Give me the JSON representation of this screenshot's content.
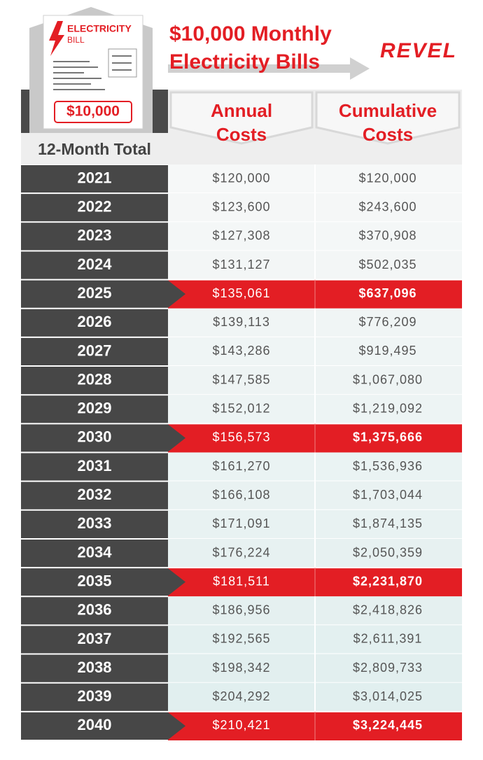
{
  "header": {
    "bill_title": "ELECTRICITY",
    "bill_sub": "BILL",
    "bill_amount": "$10,000",
    "title_lines": [
      "$10,000 Monthly",
      "Electricity Bills"
    ],
    "logo": "REVEL"
  },
  "table": {
    "row_header": "12-Month Total",
    "columns": [
      [
        "Annual",
        "Costs"
      ],
      [
        "Cumulative",
        "Costs"
      ]
    ],
    "rows": [
      {
        "year": "2021",
        "annual": "$120,000",
        "cumulative": "$120,000",
        "highlight": false
      },
      {
        "year": "2022",
        "annual": "$123,600",
        "cumulative": "$243,600",
        "highlight": false
      },
      {
        "year": "2023",
        "annual": "$127,308",
        "cumulative": "$370,908",
        "highlight": false
      },
      {
        "year": "2024",
        "annual": "$131,127",
        "cumulative": "$502,035",
        "highlight": false
      },
      {
        "year": "2025",
        "annual": "$135,061",
        "cumulative": "$637,096",
        "highlight": true
      },
      {
        "year": "2026",
        "annual": "$139,113",
        "cumulative": "$776,209",
        "highlight": false
      },
      {
        "year": "2027",
        "annual": "$143,286",
        "cumulative": "$919,495",
        "highlight": false
      },
      {
        "year": "2028",
        "annual": "$147,585",
        "cumulative": "$1,067,080",
        "highlight": false
      },
      {
        "year": "2029",
        "annual": "$152,012",
        "cumulative": "$1,219,092",
        "highlight": false
      },
      {
        "year": "2030",
        "annual": "$156,573",
        "cumulative": "$1,375,666",
        "highlight": true
      },
      {
        "year": "2031",
        "annual": "$161,270",
        "cumulative": "$1,536,936",
        "highlight": false
      },
      {
        "year": "2032",
        "annual": "$166,108",
        "cumulative": "$1,703,044",
        "highlight": false
      },
      {
        "year": "2033",
        "annual": "$171,091",
        "cumulative": "$1,874,135",
        "highlight": false
      },
      {
        "year": "2034",
        "annual": "$176,224",
        "cumulative": "$2,050,359",
        "highlight": false
      },
      {
        "year": "2035",
        "annual": "$181,511",
        "cumulative": "$2,231,870",
        "highlight": true
      },
      {
        "year": "2036",
        "annual": "$186,956",
        "cumulative": "$2,418,826",
        "highlight": false
      },
      {
        "year": "2037",
        "annual": "$192,565",
        "cumulative": "$2,611,391",
        "highlight": false
      },
      {
        "year": "2038",
        "annual": "$198,342",
        "cumulative": "$2,809,733",
        "highlight": false
      },
      {
        "year": "2039",
        "annual": "$204,292",
        "cumulative": "$3,014,025",
        "highlight": false
      },
      {
        "year": "2040",
        "annual": "$210,421",
        "cumulative": "$3,224,445",
        "highlight": true
      }
    ]
  }
}
